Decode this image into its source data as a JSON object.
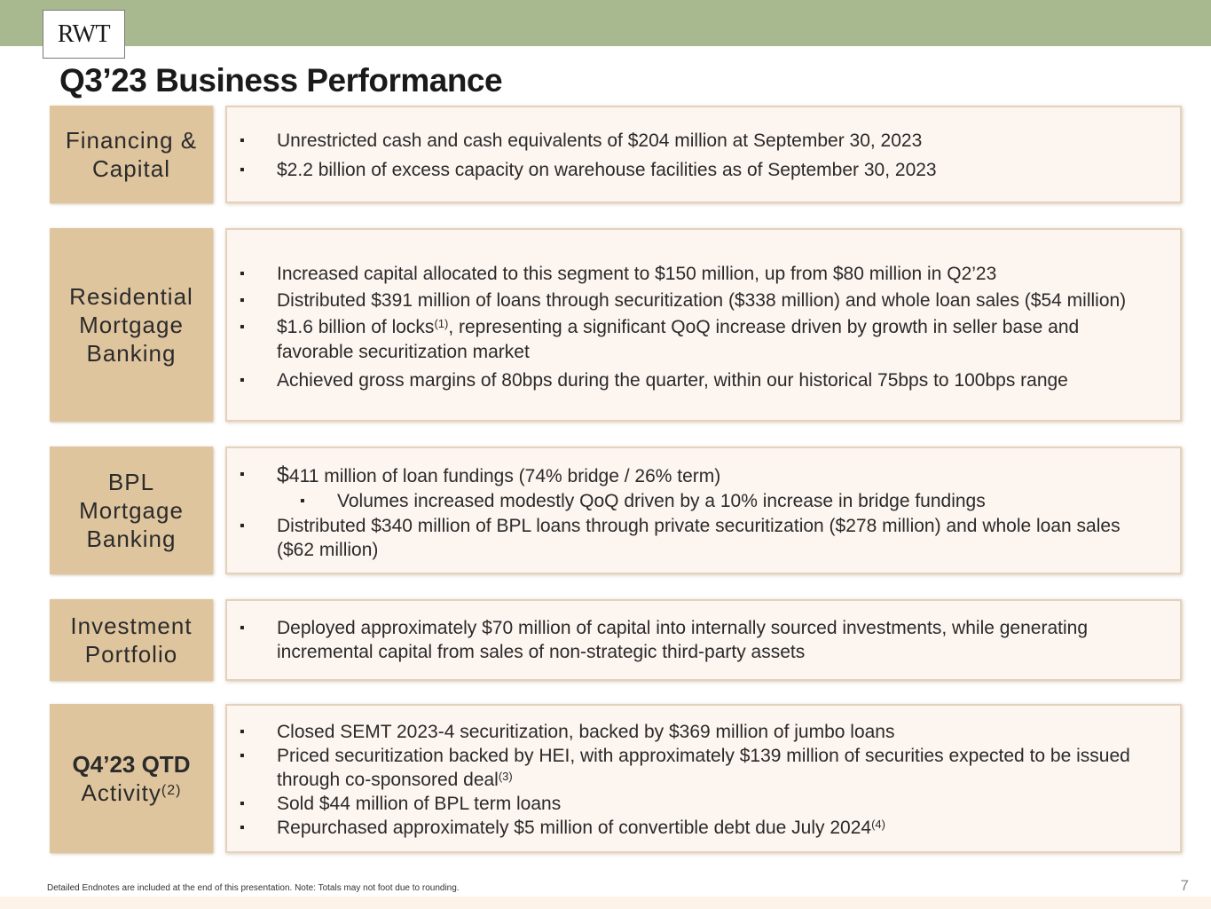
{
  "header": {
    "logo_text": "RWT",
    "title": "Q3’23 Business Performance",
    "bar_color": "#a9b98f"
  },
  "sections": [
    {
      "label_lines": [
        "Financing &",
        "Capital"
      ],
      "bullets": [
        {
          "text": "Unrestricted cash and cash equivalents of $204 million at September 30, 2023"
        },
        {
          "text": "$2.2 billion of excess capacity on warehouse facilities as of September 30, 2023"
        }
      ]
    },
    {
      "label_lines": [
        "Residential",
        "Mortgage",
        "Banking"
      ],
      "bullets": [
        {
          "text": "Increased capital allocated to this segment to $150 million, up from $80 million in Q2’23"
        },
        {
          "text": "Distributed $391 million of loans through securitization ($338 million) and whole loan sales ($54 million)"
        },
        {
          "text_before": "$1.6 billion of locks",
          "sup": "(1)",
          "text_after": ", representing a significant QoQ increase driven by growth in seller base and favorable securitization market"
        },
        {
          "text": "Achieved gross margins of 80bps during the quarter, within our historical 75bps to 100bps range"
        }
      ]
    },
    {
      "label_lines": [
        "BPL",
        "Mortgage",
        "Banking"
      ],
      "bullets": [
        {
          "dollar": "$",
          "text": "411 million of loan fundings (74% bridge / 26% term)"
        },
        {
          "text": "Volumes increased modestly QoQ driven by a 10% increase in bridge fundings",
          "sub": true
        },
        {
          "text": "Distributed $340 million of BPL loans through private securitization ($278 million) and whole loan sales ($62 million)"
        }
      ]
    },
    {
      "label_lines": [
        "Investment",
        "Portfolio"
      ],
      "bullets": [
        {
          "text": "Deployed approximately $70 million of capital into internally sourced investments, while generating incremental capital from sales of non-strategic third-party assets"
        }
      ]
    },
    {
      "label_bold": "Q4’23 QTD",
      "label_normal": "Activity",
      "label_sup": "(2)",
      "bullets": [
        {
          "text": "Closed SEMT 2023-4 securitization, backed by $369 million of jumbo loans"
        },
        {
          "text_before": "Priced securitization backed by HEI, with approximately $139 million of securities expected to be issued through co-sponsored deal",
          "sup": "(3)",
          "text_after": ""
        },
        {
          "text": "Sold $44 million of BPL term loans"
        },
        {
          "text_before": "Repurchased approximately $5 million of convertible debt due July 2024",
          "sup": "(4)",
          "text_after": ""
        }
      ]
    }
  ],
  "footer": {
    "note": "Detailed Endnotes are included at the end of this presentation. Note: Totals may not foot due to rounding.",
    "page_number": "7"
  }
}
